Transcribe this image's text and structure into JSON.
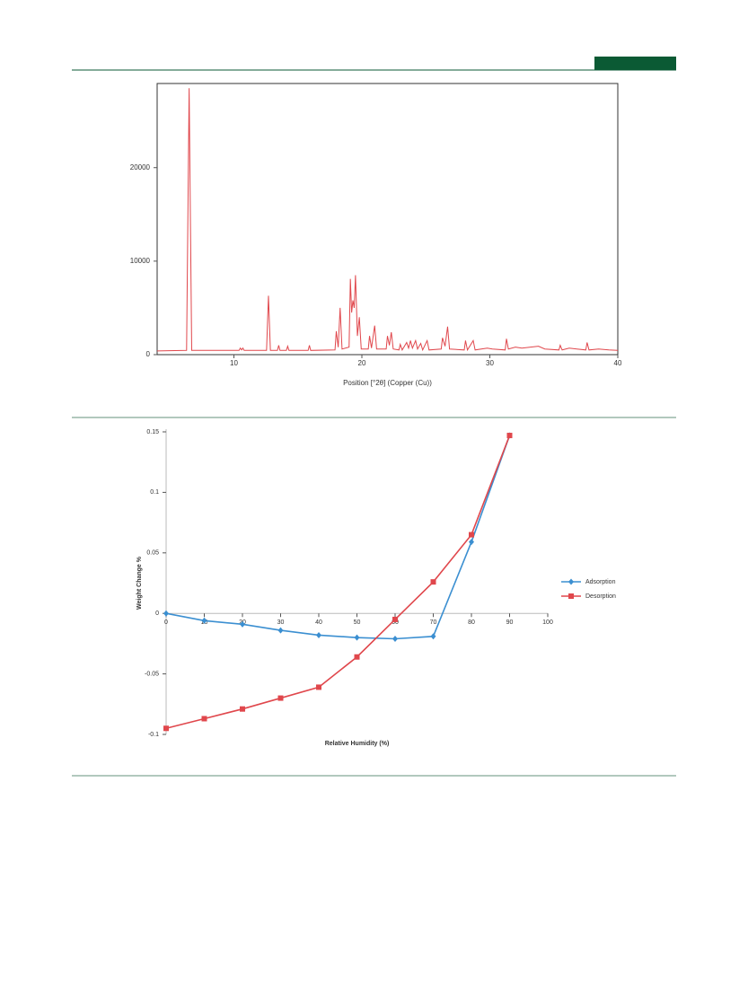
{
  "chart_data": [
    {
      "type": "line",
      "xlabel": "Position [°2θ] (Copper (Cu))",
      "color": "#e0474c",
      "x": [
        4,
        6.3,
        6.5,
        6.7,
        10.4,
        10.5,
        10.6,
        10.7,
        10.8,
        12.55,
        12.7,
        12.85,
        13.4,
        13.5,
        13.6,
        14.1,
        14.2,
        14.3,
        15.8,
        15.9,
        16.0,
        17.9,
        18.0,
        18.15,
        18.3,
        18.45,
        19.0,
        19.1,
        19.2,
        19.3,
        19.4,
        19.5,
        19.65,
        19.8,
        19.95,
        20.5,
        20.6,
        20.75,
        21.0,
        21.15,
        21.9,
        22.0,
        22.15,
        22.3,
        22.45,
        22.9,
        23.0,
        23.15,
        23.5,
        23.65,
        23.8,
        23.95,
        24.2,
        24.35,
        24.6,
        24.75,
        25.1,
        25.25,
        26.2,
        26.3,
        26.5,
        26.7,
        26.85,
        28.0,
        28.1,
        28.25,
        28.7,
        28.85,
        29.8,
        30.2,
        31.2,
        31.3,
        31.45,
        32.0,
        32.5,
        33.8,
        34.3,
        35.4,
        35.5,
        35.65,
        36.2,
        36.8,
        37.5,
        37.6,
        37.75,
        38.5,
        39.3,
        40
      ],
      "values": [
        400,
        450,
        28500,
        450,
        450,
        700,
        500,
        700,
        450,
        450,
        6300,
        450,
        450,
        1000,
        450,
        450,
        900,
        450,
        450,
        1000,
        450,
        500,
        2500,
        800,
        5000,
        600,
        800,
        8100,
        4500,
        5800,
        5000,
        8500,
        2000,
        4000,
        600,
        600,
        2000,
        700,
        3100,
        600,
        600,
        2000,
        1000,
        2400,
        600,
        500,
        1100,
        500,
        1300,
        700,
        1500,
        700,
        1500,
        600,
        1200,
        500,
        1500,
        500,
        600,
        1800,
        900,
        3000,
        600,
        500,
        1500,
        500,
        1500,
        500,
        700,
        600,
        500,
        1700,
        600,
        800,
        700,
        900,
        600,
        500,
        1000,
        500,
        700,
        600,
        500,
        1300,
        500,
        600,
        500,
        450
      ],
      "xlim": [
        4,
        40
      ],
      "xticks": [
        10,
        20,
        30,
        40
      ],
      "ylim": [
        0,
        29000
      ],
      "yticks": [
        0,
        10000,
        20000
      ]
    },
    {
      "type": "line",
      "xlabel": "Relative Humidity (%)",
      "ylabel": "Weight Change %",
      "x": [
        0,
        10,
        20,
        30,
        40,
        50,
        60,
        70,
        80,
        90
      ],
      "series": [
        {
          "name": "Adsorption",
          "color": "#3b8fd1",
          "marker": "diamond",
          "values": [
            0,
            -0.006,
            -0.009,
            -0.014,
            -0.018,
            -0.02,
            -0.021,
            -0.019,
            0.059,
            0.147
          ]
        },
        {
          "name": "Desorption",
          "color": "#e0474c",
          "marker": "square",
          "values": [
            -0.095,
            -0.087,
            -0.079,
            -0.07,
            -0.061,
            -0.036,
            -0.005,
            0.026,
            0.065,
            0.147
          ]
        }
      ],
      "xlim": [
        0,
        100
      ],
      "xticks": [
        0,
        10,
        20,
        30,
        40,
        50,
        60,
        70,
        80,
        90,
        100
      ],
      "ylim": [
        -0.1,
        0.15
      ],
      "yticks": [
        -0.1,
        -0.05,
        0,
        0.05,
        0.1,
        0.15
      ],
      "legend": "right"
    }
  ]
}
